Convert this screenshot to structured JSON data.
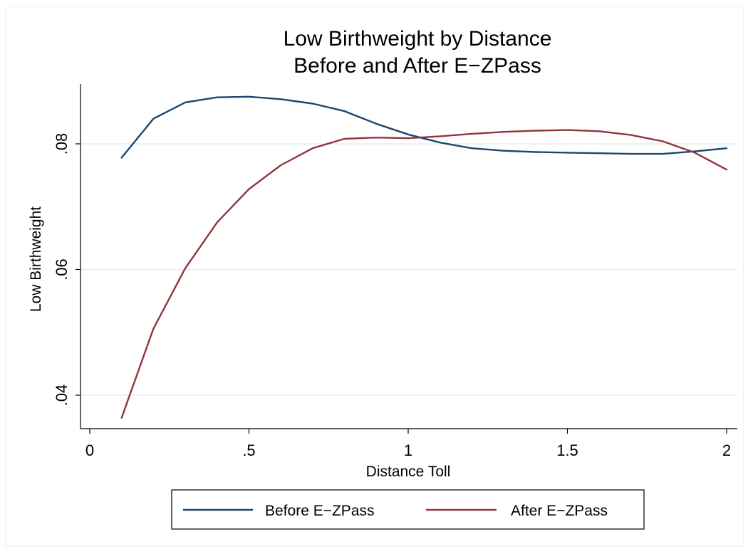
{
  "chart_data": {
    "type": "line",
    "title": "Low Birthweight by Distance",
    "subtitle": "Before and After E−ZPass",
    "xlabel": "Distance Toll",
    "ylabel": "Low Birthweight",
    "xlim": [
      0,
      2
    ],
    "ylim": [
      0.036,
      0.089
    ],
    "x_ticks": [
      {
        "value": 0,
        "label": "0"
      },
      {
        "value": 0.5,
        "label": ".5"
      },
      {
        "value": 1,
        "label": "1"
      },
      {
        "value": 1.5,
        "label": "1.5"
      },
      {
        "value": 2,
        "label": "2"
      }
    ],
    "y_ticks": [
      {
        "value": 0.04,
        "label": ".04"
      },
      {
        "value": 0.06,
        "label": ".06"
      },
      {
        "value": 0.08,
        "label": ".08"
      }
    ],
    "grid": "horizontal",
    "legend_position": "bottom",
    "x": [
      0.1,
      0.2,
      0.3,
      0.4,
      0.5,
      0.6,
      0.7,
      0.8,
      0.9,
      1.0,
      1.1,
      1.2,
      1.3,
      1.4,
      1.5,
      1.6,
      1.7,
      1.8,
      1.9,
      2.0
    ],
    "series": [
      {
        "name": "Before E−ZPass",
        "color": "#1a476f",
        "values": [
          0.0778,
          0.084,
          0.0866,
          0.0874,
          0.0875,
          0.0871,
          0.0864,
          0.0852,
          0.0832,
          0.0815,
          0.0802,
          0.0793,
          0.0789,
          0.0787,
          0.0786,
          0.0785,
          0.0784,
          0.0784,
          0.0788,
          0.0793
        ]
      },
      {
        "name": "After E−ZPass",
        "color": "#90353b",
        "values": [
          0.0364,
          0.0506,
          0.0602,
          0.0675,
          0.0728,
          0.0766,
          0.0793,
          0.0808,
          0.081,
          0.0809,
          0.0812,
          0.0816,
          0.0819,
          0.0821,
          0.0822,
          0.082,
          0.0814,
          0.0804,
          0.0786,
          0.0759
        ]
      }
    ]
  }
}
